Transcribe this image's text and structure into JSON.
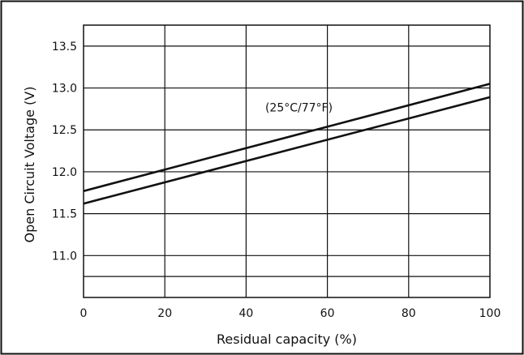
{
  "chart_data": {
    "type": "line",
    "title": "",
    "xlabel": "Residual capacity (%)",
    "ylabel": "Open Circuit Voltage (V)",
    "xlim": [
      0,
      100
    ],
    "ylim": [
      10.5,
      13.75
    ],
    "x_ticks": [
      0,
      20,
      40,
      60,
      80,
      100
    ],
    "x_tick_labels": [
      "0",
      "20",
      "40",
      "60",
      "80",
      "100"
    ],
    "y_ticks": [
      11.0,
      11.5,
      12.0,
      12.5,
      13.0,
      13.5
    ],
    "y_tick_labels": [
      "11.0",
      "11.5",
      "12.0",
      "12.5",
      "13.0",
      "13.5"
    ],
    "grid": true,
    "legend": "none",
    "annotation": "(25°C/77°F)",
    "annotation_at": {
      "x": 53,
      "y": 12.72
    },
    "series": [
      {
        "x": [
          0,
          100
        ],
        "y": [
          11.77,
          13.05
        ],
        "color": "#111111"
      },
      {
        "x": [
          0,
          100
        ],
        "y": [
          11.62,
          12.89
        ],
        "color": "#111111"
      }
    ]
  }
}
